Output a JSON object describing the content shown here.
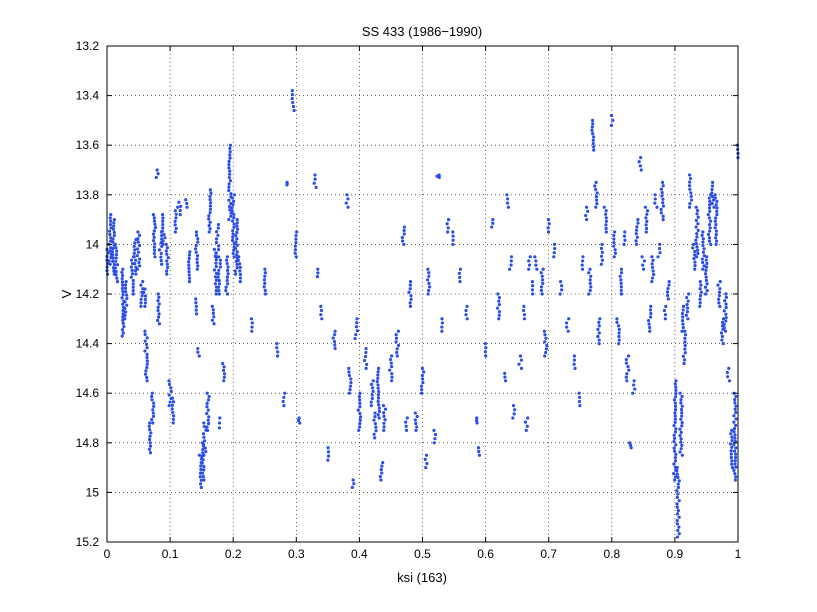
{
  "chart_data": {
    "type": "scatter",
    "title": "SS 433 (1986−1990)",
    "xlabel": "ksi (163)",
    "ylabel": "V",
    "xlim": [
      0,
      1
    ],
    "ylim": [
      15.2,
      13.2
    ],
    "y_axis_reversed": true,
    "grid": true,
    "marker_color": "#2b4ee6",
    "x_ticks": [
      0,
      0.1,
      0.2,
      0.3,
      0.4,
      0.5,
      0.6,
      0.7,
      0.8,
      0.9,
      1
    ],
    "x_tick_labels": [
      "0",
      "0.1",
      "0.2",
      "0.3",
      "0.4",
      "0.5",
      "0.6",
      "0.7",
      "0.8",
      "0.9",
      "1"
    ],
    "y_ticks": [
      13.2,
      13.4,
      13.6,
      13.8,
      14,
      14.2,
      14.4,
      14.6,
      14.8,
      15,
      15.2
    ],
    "y_tick_labels": [
      "13.2",
      "13.4",
      "13.6",
      "13.8",
      "14",
      "14.2",
      "14.4",
      "14.6",
      "14.8",
      "15",
      "15.2"
    ],
    "clusters": [
      [
        0.0,
        14.02,
        14.12
      ],
      [
        0.005,
        13.88,
        14.08
      ],
      [
        0.01,
        13.9,
        14.12
      ],
      [
        0.015,
        14.0,
        14.15
      ],
      [
        0.025,
        14.1,
        14.37
      ],
      [
        0.03,
        14.15,
        14.3
      ],
      [
        0.04,
        14.05,
        14.2
      ],
      [
        0.045,
        13.98,
        14.12
      ],
      [
        0.05,
        13.95,
        14.1
      ],
      [
        0.055,
        14.15,
        14.25
      ],
      [
        0.06,
        14.18,
        14.25
      ],
      [
        0.062,
        14.35,
        14.55
      ],
      [
        0.068,
        14.72,
        14.84
      ],
      [
        0.072,
        14.6,
        14.72
      ],
      [
        0.075,
        13.88,
        14.05
      ],
      [
        0.08,
        13.7,
        13.73
      ],
      [
        0.082,
        14.2,
        14.32
      ],
      [
        0.085,
        13.95,
        14.08
      ],
      [
        0.09,
        13.88,
        14.0
      ],
      [
        0.095,
        14.0,
        14.12
      ],
      [
        0.1,
        14.55,
        14.65
      ],
      [
        0.105,
        14.62,
        14.72
      ],
      [
        0.11,
        13.85,
        13.95
      ],
      [
        0.115,
        13.83,
        13.88
      ],
      [
        0.125,
        13.82,
        13.85
      ],
      [
        0.13,
        14.03,
        14.15
      ],
      [
        0.14,
        14.22,
        14.28
      ],
      [
        0.142,
        13.95,
        14.1
      ],
      [
        0.145,
        14.42,
        14.45
      ],
      [
        0.148,
        14.85,
        14.98
      ],
      [
        0.152,
        14.8,
        14.95
      ],
      [
        0.155,
        14.72,
        14.85
      ],
      [
        0.16,
        14.6,
        14.75
      ],
      [
        0.163,
        13.78,
        13.95
      ],
      [
        0.168,
        14.25,
        14.32
      ],
      [
        0.172,
        14.02,
        14.2
      ],
      [
        0.175,
        13.92,
        14.05
      ],
      [
        0.178,
        14.05,
        14.2
      ],
      [
        0.18,
        14.7,
        14.74
      ],
      [
        0.185,
        14.48,
        14.55
      ],
      [
        0.19,
        14.05,
        14.2
      ],
      [
        0.195,
        13.6,
        13.9
      ],
      [
        0.2,
        13.8,
        14.05
      ],
      [
        0.205,
        13.9,
        14.12
      ],
      [
        0.21,
        14.05,
        14.15
      ],
      [
        0.23,
        14.3,
        14.35
      ],
      [
        0.25,
        14.1,
        14.2
      ],
      [
        0.27,
        14.4,
        14.45
      ],
      [
        0.28,
        14.6,
        14.65
      ],
      [
        0.285,
        13.75,
        13.76
      ],
      [
        0.295,
        13.38,
        13.46
      ],
      [
        0.3,
        13.95,
        14.05
      ],
      [
        0.305,
        14.7,
        14.72
      ],
      [
        0.33,
        13.72,
        13.77
      ],
      [
        0.335,
        14.1,
        14.13
      ],
      [
        0.34,
        14.25,
        14.3
      ],
      [
        0.35,
        14.82,
        14.87
      ],
      [
        0.36,
        14.35,
        14.42
      ],
      [
        0.38,
        13.8,
        13.85
      ],
      [
        0.385,
        14.5,
        14.6
      ],
      [
        0.39,
        14.95,
        14.98
      ],
      [
        0.395,
        14.3,
        14.38
      ],
      [
        0.4,
        14.6,
        14.75
      ],
      [
        0.41,
        14.42,
        14.5
      ],
      [
        0.42,
        14.55,
        14.65
      ],
      [
        0.425,
        14.68,
        14.78
      ],
      [
        0.43,
        14.5,
        14.7
      ],
      [
        0.435,
        14.88,
        14.95
      ],
      [
        0.44,
        14.65,
        14.75
      ],
      [
        0.45,
        14.45,
        14.55
      ],
      [
        0.46,
        14.35,
        14.45
      ],
      [
        0.47,
        13.93,
        14.0
      ],
      [
        0.475,
        14.7,
        14.75
      ],
      [
        0.48,
        14.15,
        14.25
      ],
      [
        0.49,
        14.68,
        14.75
      ],
      [
        0.5,
        14.5,
        14.6
      ],
      [
        0.505,
        14.85,
        14.9
      ],
      [
        0.51,
        14.1,
        14.2
      ],
      [
        0.52,
        14.75,
        14.8
      ],
      [
        0.525,
        13.72,
        13.73
      ],
      [
        0.53,
        14.3,
        14.35
      ],
      [
        0.54,
        13.9,
        13.95
      ],
      [
        0.55,
        13.95,
        14.0
      ],
      [
        0.56,
        14.1,
        14.15
      ],
      [
        0.57,
        14.25,
        14.3
      ],
      [
        0.585,
        14.7,
        14.72
      ],
      [
        0.59,
        14.82,
        14.85
      ],
      [
        0.6,
        14.4,
        14.45
      ],
      [
        0.61,
        13.9,
        13.93
      ],
      [
        0.62,
        14.2,
        14.3
      ],
      [
        0.63,
        14.52,
        14.55
      ],
      [
        0.635,
        13.8,
        13.85
      ],
      [
        0.64,
        14.05,
        14.1
      ],
      [
        0.645,
        14.65,
        14.7
      ],
      [
        0.655,
        14.45,
        14.5
      ],
      [
        0.66,
        14.25,
        14.3
      ],
      [
        0.665,
        14.7,
        14.75
      ],
      [
        0.67,
        14.05,
        14.1
      ],
      [
        0.675,
        14.15,
        14.2
      ],
      [
        0.68,
        14.05,
        14.1
      ],
      [
        0.69,
        14.1,
        14.2
      ],
      [
        0.695,
        14.35,
        14.45
      ],
      [
        0.7,
        13.9,
        13.95
      ],
      [
        0.71,
        14.0,
        14.05
      ],
      [
        0.72,
        14.15,
        14.2
      ],
      [
        0.73,
        14.3,
        14.35
      ],
      [
        0.74,
        14.45,
        14.5
      ],
      [
        0.75,
        14.6,
        14.65
      ],
      [
        0.755,
        14.05,
        14.1
      ],
      [
        0.76,
        13.85,
        13.9
      ],
      [
        0.765,
        14.1,
        14.2
      ],
      [
        0.77,
        13.5,
        13.62
      ],
      [
        0.775,
        13.75,
        13.85
      ],
      [
        0.78,
        14.3,
        14.4
      ],
      [
        0.785,
        14.0,
        14.08
      ],
      [
        0.79,
        13.85,
        13.95
      ],
      [
        0.8,
        13.48,
        13.52
      ],
      [
        0.805,
        13.95,
        14.05
      ],
      [
        0.81,
        14.3,
        14.4
      ],
      [
        0.815,
        14.1,
        14.2
      ],
      [
        0.82,
        13.95,
        14.0
      ],
      [
        0.825,
        14.45,
        14.55
      ],
      [
        0.83,
        14.8,
        14.82
      ],
      [
        0.835,
        14.55,
        14.6
      ],
      [
        0.84,
        13.9,
        14.0
      ],
      [
        0.845,
        13.65,
        13.7
      ],
      [
        0.85,
        14.05,
        14.1
      ],
      [
        0.855,
        13.85,
        13.95
      ],
      [
        0.86,
        14.25,
        14.35
      ],
      [
        0.865,
        14.05,
        14.15
      ],
      [
        0.87,
        13.8,
        13.85
      ],
      [
        0.875,
        14.0,
        14.05
      ],
      [
        0.88,
        13.75,
        13.9
      ],
      [
        0.885,
        14.25,
        14.3
      ],
      [
        0.89,
        14.15,
        14.22
      ],
      [
        0.9,
        14.55,
        14.95
      ],
      [
        0.905,
        14.9,
        15.18
      ],
      [
        0.91,
        14.6,
        14.85
      ],
      [
        0.912,
        14.25,
        14.35
      ],
      [
        0.915,
        14.35,
        14.48
      ],
      [
        0.92,
        14.2,
        14.3
      ],
      [
        0.925,
        13.72,
        13.85
      ],
      [
        0.93,
        14.0,
        14.1
      ],
      [
        0.935,
        13.85,
        14.05
      ],
      [
        0.94,
        14.15,
        14.25
      ],
      [
        0.945,
        13.95,
        14.1
      ],
      [
        0.95,
        14.05,
        14.2
      ],
      [
        0.955,
        13.8,
        14.0
      ],
      [
        0.96,
        13.75,
        13.85
      ],
      [
        0.965,
        13.8,
        14.0
      ],
      [
        0.97,
        14.15,
        14.25
      ],
      [
        0.975,
        14.3,
        14.4
      ],
      [
        0.98,
        14.2,
        14.35
      ],
      [
        0.985,
        14.5,
        14.55
      ],
      [
        0.99,
        14.75,
        14.9
      ],
      [
        0.995,
        14.6,
        14.95
      ],
      [
        1.0,
        13.6,
        13.65
      ]
    ]
  }
}
